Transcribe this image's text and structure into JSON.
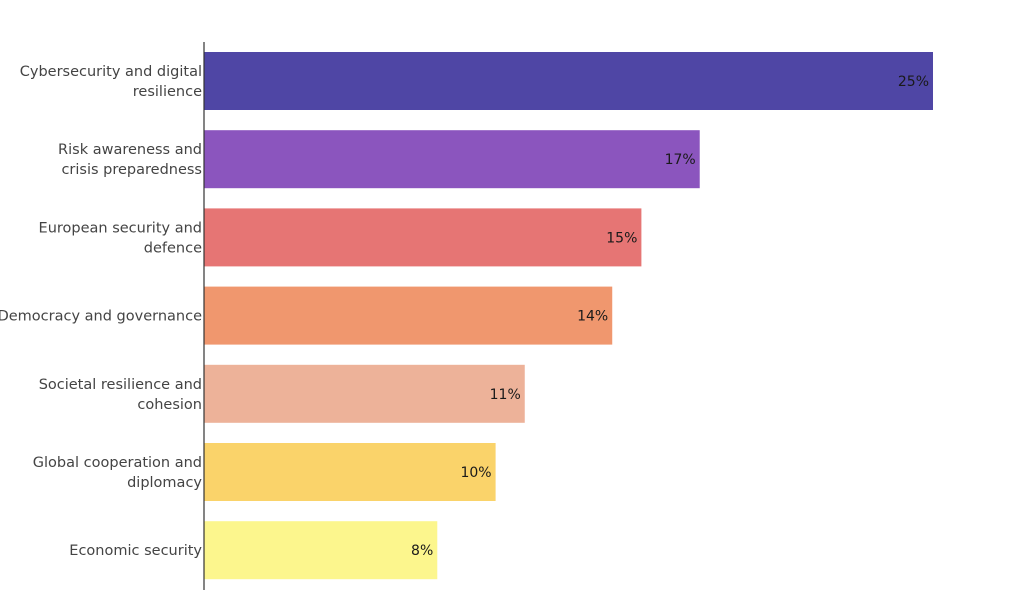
{
  "chart_data": {
    "type": "bar",
    "orientation": "horizontal",
    "categories": [
      [
        "Cybersecurity and digital",
        "resilience"
      ],
      [
        "Risk awareness and",
        "crisis preparedness"
      ],
      [
        "European security and",
        "defence"
      ],
      [
        "Democracy and governance"
      ],
      [
        "Societal resilience and",
        "cohesion"
      ],
      [
        "Global cooperation and",
        "diplomacy"
      ],
      [
        "Economic security"
      ]
    ],
    "values": [
      25,
      17,
      15,
      14,
      11,
      10,
      8
    ],
    "value_labels": [
      "25%",
      "17%",
      "15%",
      "14%",
      "11%",
      "10%",
      "8%"
    ],
    "colors": [
      "#4f46a5",
      "#8b55be",
      "#e67574",
      "#f0976e",
      "#edb299",
      "#fad36a",
      "#fcf68d"
    ],
    "xlim": [
      0,
      25
    ],
    "title": "",
    "xlabel": "",
    "ylabel": "",
    "grid": false,
    "legend": "none"
  }
}
